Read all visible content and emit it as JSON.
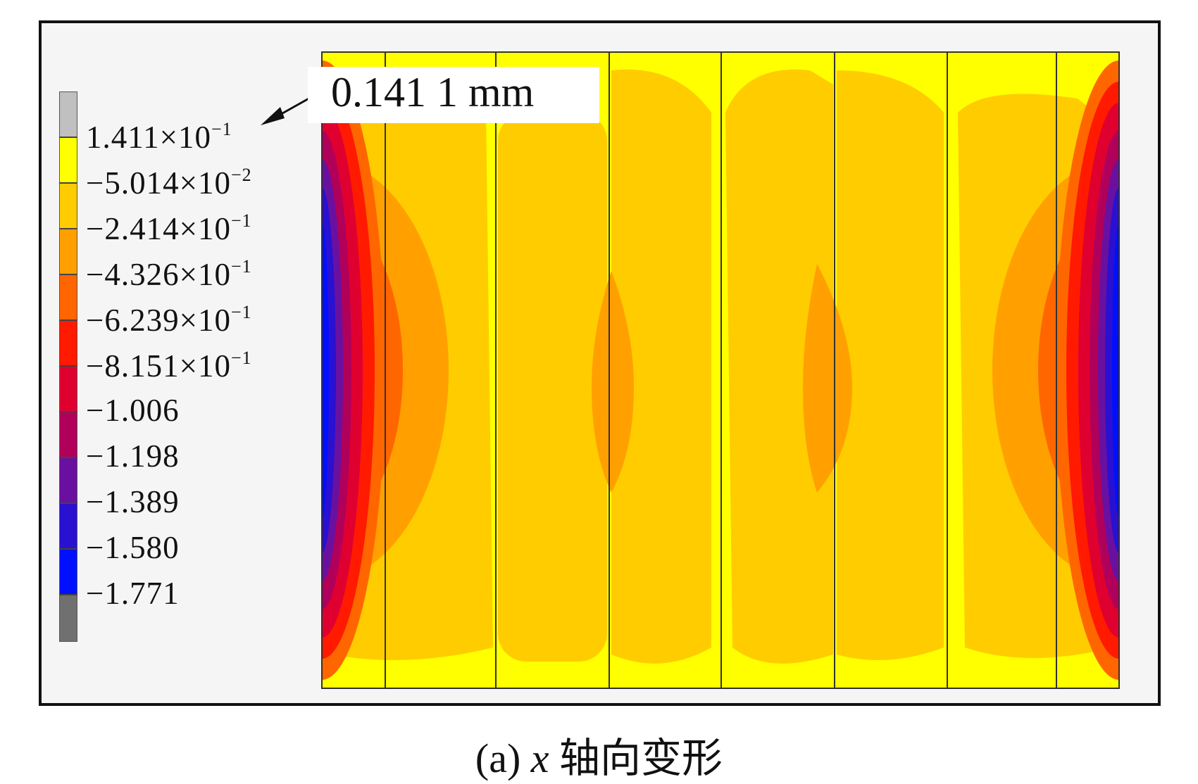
{
  "callout": {
    "text": "0.141 1 mm"
  },
  "legend": {
    "labels": [
      {
        "base": "1.411×10",
        "exp": "−1"
      },
      {
        "base": "−5.014×10",
        "exp": "−2"
      },
      {
        "base": "−2.414×10",
        "exp": "−1"
      },
      {
        "base": "−4.326×10",
        "exp": "−1"
      },
      {
        "base": "−6.239×10",
        "exp": "−1"
      },
      {
        "base": "−8.151×10",
        "exp": "−1"
      },
      {
        "base": "−1.006",
        "exp": ""
      },
      {
        "base": "−1.198",
        "exp": ""
      },
      {
        "base": "−1.389",
        "exp": ""
      },
      {
        "base": "−1.580",
        "exp": ""
      },
      {
        "base": "−1.771",
        "exp": ""
      }
    ],
    "colors": [
      "#c0c0c0",
      "#ffff00",
      "#ffcc00",
      "#ffa000",
      "#ff6600",
      "#ff1a00",
      "#e00030",
      "#b0005a",
      "#6a10a0",
      "#2a10d0",
      "#0010ff",
      "#707070"
    ]
  },
  "caption": {
    "prefix": "(a)",
    "letter": "x",
    "suffix": "轴向变形"
  }
}
